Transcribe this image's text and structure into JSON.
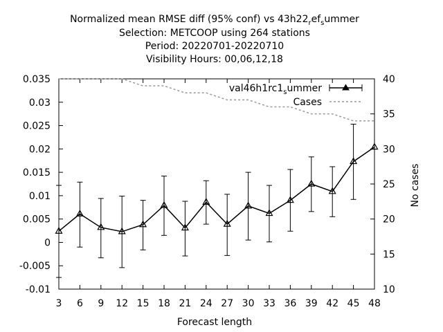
{
  "chart_data": {
    "type": "line",
    "title_lines": [
      "Normalized mean RMSE diff (95% conf) vs 43h22_ref_summer",
      "Selection: METCOOP using   264 stations",
      "Period: 20220701-20220710",
      "Visibility   Hours: 00,06,12,18"
    ],
    "title_parts": {
      "line1_before": "Normalized mean RMSE diff (95% conf) vs 43h22",
      "line1_sub1": "r",
      "line1_mid": "ef",
      "line1_sub2": "s",
      "line1_after": "ummer"
    },
    "xlabel": "Forecast length",
    "ylabel": "",
    "y2label": "No cases",
    "x": [
      3,
      6,
      9,
      12,
      15,
      18,
      21,
      24,
      27,
      30,
      33,
      36,
      39,
      42,
      45,
      48
    ],
    "xlim": [
      3,
      48
    ],
    "ylim": [
      -0.01,
      0.035
    ],
    "y2lim": [
      10,
      40
    ],
    "x_ticks": [
      "3",
      "6",
      "9",
      "12",
      "15",
      "18",
      "21",
      "24",
      "27",
      "30",
      "33",
      "36",
      "39",
      "42",
      "45",
      "48"
    ],
    "y_ticks": [
      "-0.01",
      "-0.005",
      "0",
      "0.005",
      "0.01",
      "0.015",
      "0.02",
      "0.025",
      "0.03",
      "0.035"
    ],
    "y2_ticks": [
      "10",
      "15",
      "20",
      "25",
      "30",
      "35",
      "40"
    ],
    "legend_position": "top-right",
    "grid": false,
    "series": [
      {
        "name": "val46h1rc1_summer",
        "legend_parts": {
          "before": "val46h1rc1",
          "sub": "s",
          "after": "ummer"
        },
        "axis": "left",
        "color": "#000000",
        "marker": "triangle",
        "values": [
          0.0024,
          0.0061,
          0.0032,
          0.0023,
          0.0038,
          0.0079,
          0.0031,
          0.0086,
          0.0039,
          0.0078,
          0.0062,
          0.009,
          0.0125,
          0.0109,
          0.0173,
          0.0204
        ],
        "err_low": [
          -0.0075,
          -0.001,
          -0.0033,
          -0.0054,
          -0.0016,
          0.0015,
          -0.0029,
          0.0039,
          -0.0028,
          0.0005,
          0.0001,
          0.0024,
          0.0066,
          0.0055,
          0.0092,
          0.0204
        ],
        "err_high": [
          0.0122,
          0.0129,
          0.0094,
          0.0099,
          0.009,
          0.0142,
          0.0088,
          0.0132,
          0.0103,
          0.015,
          0.0122,
          0.0156,
          0.0183,
          0.0162,
          0.0253,
          0.0204
        ]
      },
      {
        "name": "Cases",
        "axis": "right",
        "color": "#999999",
        "dash": true,
        "values": [
          40,
          40,
          40,
          40,
          39,
          39,
          38,
          38,
          37,
          37,
          36,
          36,
          35,
          35,
          34,
          34
        ]
      }
    ]
  }
}
